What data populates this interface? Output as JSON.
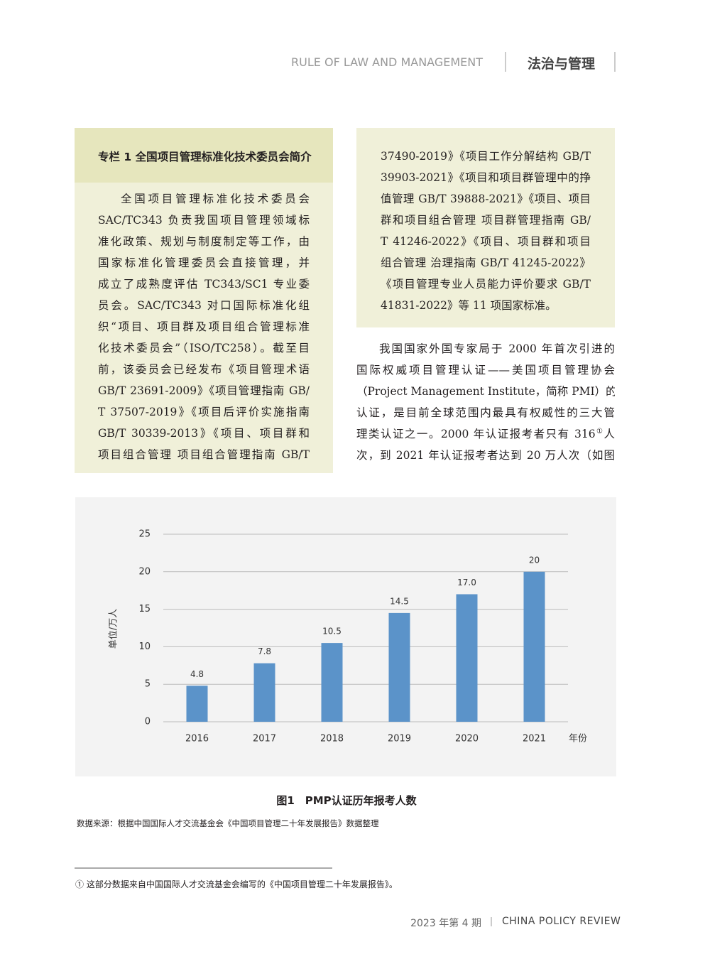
{
  "header": {
    "title_en": "RULE OF  LAW AND MANAGEMENT",
    "title_cn": "法治与管理"
  },
  "sidebar": {
    "title": "专栏 1  全国项目管理标准化技术委员会简介",
    "left_lines": [
      "全国项目管理标准化技术委员会",
      "SAC/TC343 负责我国项目管理领域标",
      "准化政策、规划与制度制定等工作，由",
      "国家标准化管理委员会直接管理，并",
      "成立了成熟度评估 TC343/SC1 专业委",
      "员会。SAC/TC343 对口国际标准化组",
      "织“项目、项目群及项目组合管理标准",
      "化技术委员会”（ISO/TC258）。截至目",
      "前，该委员会已经发布《项目管理术语",
      "GB/T 23691-2009》《项目管理指南 GB/",
      "T 37507-2019》《项目后评价实施指南",
      "GB/T 30339-2013》《项目、项目群和",
      "项目组合管理 项目组合管理指南 GB/T"
    ],
    "right_lines": [
      "37490-2019》《项目工作分解结构 GB/T",
      "39903-2021》《项目和项目群管理中的挣",
      "值管理 GB/T 39888-2021》《项目、项目",
      "群和项目组合管理 项目群管理指南 GB/",
      "T 41246-2022》《项目、项目群和项目",
      "组合管理 治理指南 GB/T 41245-2022》",
      "《项目管理专业人员能力评价要求 GB/T",
      "41831-2022》等 11 项国家标准。"
    ]
  },
  "body": {
    "lines": [
      "我国国家外国专家局于 2000 年首次引进的",
      "国际权威项目管理认证——美国项目管理协会",
      "（Project Management Institute，简称 PMI）的 PMP",
      "认证，是目前全球范围内最具有权威性的三大管",
      {
        "before": "理类认证之一。2000 年认证报考者只有 316",
        "marker": "①",
        "after": "人"
      },
      "次，到 2021 年认证报考者达到 20 万人次（如图"
    ]
  },
  "chart_data": {
    "type": "bar",
    "categories": [
      "2016",
      "2017",
      "2018",
      "2019",
      "2020",
      "2021"
    ],
    "values": [
      4.8,
      7.8,
      10.5,
      14.5,
      17,
      20
    ],
    "value_labels": [
      "4.8",
      "7.8",
      "10.5",
      "14.5",
      "17.0",
      "20"
    ],
    "color": "#5b93c9",
    "ylim": [
      0,
      25
    ],
    "yticks": [
      0,
      5,
      10,
      15,
      20,
      25
    ],
    "grid": true,
    "y_label": "单位/万人",
    "x_label": "年份"
  },
  "caption": "图1　PMP认证历年报考人数",
  "source": "数据来源：根据中国国际人才交流基金会《中国项目管理二十年发展报告》数据整理",
  "footnote": "①  这部分数据来自中国国际人才交流基金会编写的《中国项目管理二十年发展报告》。",
  "footer": {
    "issue": "2023 年第 4 期",
    "journal": "CHINA POLICY REVIEW"
  }
}
